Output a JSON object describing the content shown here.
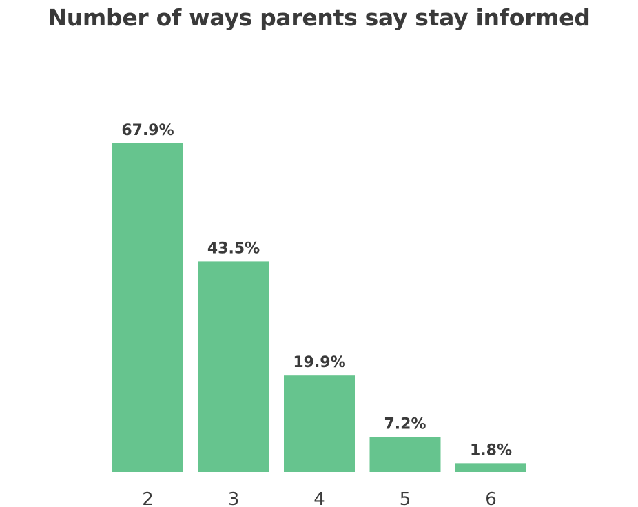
{
  "chart_data": {
    "type": "bar",
    "title": "Number of ways parents say stay informed",
    "categories": [
      "2",
      "3",
      "4",
      "5",
      "6"
    ],
    "values": [
      67.9,
      43.5,
      19.9,
      7.2,
      1.8
    ],
    "labels": [
      "67.9%",
      "43.5%",
      "19.9%",
      "7.2%",
      "1.8%"
    ],
    "xlabel": "",
    "ylabel": "",
    "ylim": [
      0,
      67.9
    ],
    "grid": false,
    "bar_color": "#66c48e"
  }
}
